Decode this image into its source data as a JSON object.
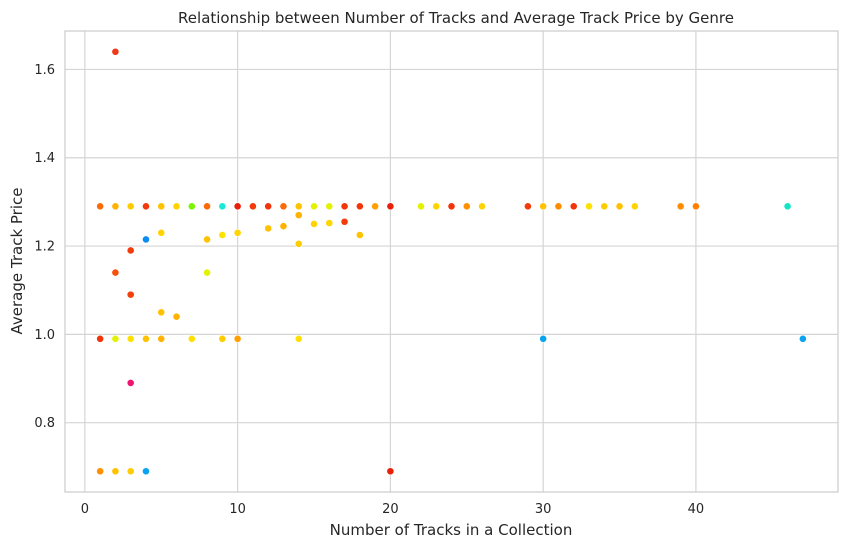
{
  "chart_data": {
    "type": "scatter",
    "title": "Relationship between Number of Tracks and Average Track Price by Genre",
    "xlabel": "Number of Tracks in a Collection",
    "ylabel": "Average Track Price",
    "xlim": [
      -1.3,
      49.3
    ],
    "ylim": [
      0.643,
      1.687
    ],
    "xticks": [
      0,
      10,
      20,
      30,
      40
    ],
    "yticks": [
      0.8,
      1.0,
      1.2,
      1.4,
      1.6
    ],
    "xtick_labels": [
      "0",
      "10",
      "20",
      "30",
      "40"
    ],
    "ytick_labels": [
      "0.8",
      "1.0",
      "1.2",
      "1.4",
      "1.6"
    ],
    "grid": true,
    "legend": "none",
    "points": [
      {
        "x": 1,
        "y": 1.29,
        "color": "#fb6a0a"
      },
      {
        "x": 2,
        "y": 1.29,
        "color": "#ffb300"
      },
      {
        "x": 3,
        "y": 1.29,
        "color": "#ffcc00"
      },
      {
        "x": 4,
        "y": 1.29,
        "color": "#f23a0a"
      },
      {
        "x": 5,
        "y": 1.29,
        "color": "#ffc200"
      },
      {
        "x": 6,
        "y": 1.29,
        "color": "#ffd400"
      },
      {
        "x": 7,
        "y": 1.29,
        "color": "#7cf500"
      },
      {
        "x": 8,
        "y": 1.29,
        "color": "#fb6a0a"
      },
      {
        "x": 9,
        "y": 1.29,
        "color": "#1ee8d6"
      },
      {
        "x": 10,
        "y": 1.29,
        "color": "#e8200b"
      },
      {
        "x": 11,
        "y": 1.29,
        "color": "#f23a0a"
      },
      {
        "x": 12,
        "y": 1.29,
        "color": "#f2340a"
      },
      {
        "x": 13,
        "y": 1.29,
        "color": "#fb6a0a"
      },
      {
        "x": 14,
        "y": 1.29,
        "color": "#ffc200"
      },
      {
        "x": 15,
        "y": 1.29,
        "color": "#e2f200"
      },
      {
        "x": 16,
        "y": 1.29,
        "color": "#e2f200"
      },
      {
        "x": 17,
        "y": 1.29,
        "color": "#f2340a"
      },
      {
        "x": 18,
        "y": 1.29,
        "color": "#f2340a"
      },
      {
        "x": 19,
        "y": 1.29,
        "color": "#ffa000"
      },
      {
        "x": 20,
        "y": 1.29,
        "color": "#e8200b"
      },
      {
        "x": 22,
        "y": 1.29,
        "color": "#e2f200"
      },
      {
        "x": 23,
        "y": 1.29,
        "color": "#ffd400"
      },
      {
        "x": 24,
        "y": 1.29,
        "color": "#f2340a"
      },
      {
        "x": 25,
        "y": 1.29,
        "color": "#ff9000"
      },
      {
        "x": 26,
        "y": 1.29,
        "color": "#ffd400"
      },
      {
        "x": 29,
        "y": 1.29,
        "color": "#f23a0a"
      },
      {
        "x": 30,
        "y": 1.29,
        "color": "#ffc200"
      },
      {
        "x": 31,
        "y": 1.29,
        "color": "#ff8c00"
      },
      {
        "x": 32,
        "y": 1.29,
        "color": "#f2340a"
      },
      {
        "x": 33,
        "y": 1.29,
        "color": "#ffe000"
      },
      {
        "x": 34,
        "y": 1.29,
        "color": "#ffcc00"
      },
      {
        "x": 35,
        "y": 1.29,
        "color": "#ffc200"
      },
      {
        "x": 36,
        "y": 1.29,
        "color": "#ffd400"
      },
      {
        "x": 39,
        "y": 1.29,
        "color": "#ff8c00"
      },
      {
        "x": 40,
        "y": 1.29,
        "color": "#ff8000"
      },
      {
        "x": 46,
        "y": 1.29,
        "color": "#11e5c6"
      },
      {
        "x": 2,
        "y": 1.64,
        "color": "#ee3a16"
      },
      {
        "x": 2,
        "y": 1.14,
        "color": "#f8500c"
      },
      {
        "x": 3,
        "y": 1.19,
        "color": "#f23a0a"
      },
      {
        "x": 3,
        "y": 1.09,
        "color": "#f2400a"
      },
      {
        "x": 4,
        "y": 1.215,
        "color": "#0a8cf0"
      },
      {
        "x": 5,
        "y": 1.23,
        "color": "#ffd400"
      },
      {
        "x": 5,
        "y": 1.05,
        "color": "#ffc200"
      },
      {
        "x": 6,
        "y": 1.04,
        "color": "#ffb300"
      },
      {
        "x": 8,
        "y": 1.215,
        "color": "#ffc200"
      },
      {
        "x": 8,
        "y": 1.14,
        "color": "#e2f200"
      },
      {
        "x": 9,
        "y": 1.225,
        "color": "#ffe000"
      },
      {
        "x": 10,
        "y": 1.23,
        "color": "#ffd400"
      },
      {
        "x": 12,
        "y": 1.24,
        "color": "#ffc200"
      },
      {
        "x": 13,
        "y": 1.245,
        "color": "#ffb300"
      },
      {
        "x": 14,
        "y": 1.27,
        "color": "#ffb300"
      },
      {
        "x": 14,
        "y": 1.205,
        "color": "#ffcc00"
      },
      {
        "x": 15,
        "y": 1.25,
        "color": "#ffd400"
      },
      {
        "x": 16,
        "y": 1.252,
        "color": "#ffd400"
      },
      {
        "x": 17,
        "y": 1.255,
        "color": "#f23a0a"
      },
      {
        "x": 18,
        "y": 1.225,
        "color": "#ffc200"
      },
      {
        "x": 1,
        "y": 0.99,
        "color": "#f2340a"
      },
      {
        "x": 2,
        "y": 0.99,
        "color": "#e2f200"
      },
      {
        "x": 3,
        "y": 0.99,
        "color": "#ffe000"
      },
      {
        "x": 4,
        "y": 0.99,
        "color": "#ffc200"
      },
      {
        "x": 5,
        "y": 0.99,
        "color": "#ffb300"
      },
      {
        "x": 7,
        "y": 0.99,
        "color": "#ffe000"
      },
      {
        "x": 9,
        "y": 0.99,
        "color": "#ffcc00"
      },
      {
        "x": 10,
        "y": 0.99,
        "color": "#ffa000"
      },
      {
        "x": 14,
        "y": 0.99,
        "color": "#ffe000"
      },
      {
        "x": 30,
        "y": 0.99,
        "color": "#0aa3f0"
      },
      {
        "x": 47,
        "y": 0.99,
        "color": "#0aa3f0"
      },
      {
        "x": 3,
        "y": 0.89,
        "color": "#f0146e"
      },
      {
        "x": 1,
        "y": 0.69,
        "color": "#ff9000"
      },
      {
        "x": 2,
        "y": 0.69,
        "color": "#ffc200"
      },
      {
        "x": 3,
        "y": 0.69,
        "color": "#ffcc00"
      },
      {
        "x": 4,
        "y": 0.69,
        "color": "#0aa3f0"
      },
      {
        "x": 20,
        "y": 0.69,
        "color": "#e8200b"
      }
    ]
  }
}
